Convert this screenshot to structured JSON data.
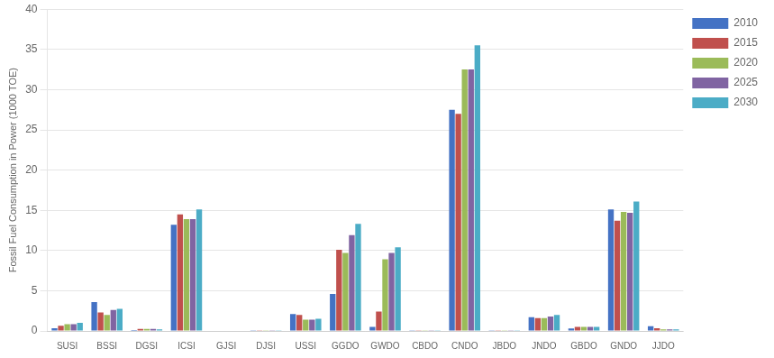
{
  "chart_data": {
    "type": "bar",
    "categories": [
      "SUSI",
      "BSSI",
      "DGSI",
      "ICSI",
      "GJSI",
      "DJSI",
      "USSI",
      "GGDO",
      "GWDO",
      "CBDO",
      "CNDO",
      "JBDO",
      "JNDO",
      "GBDO",
      "GNDO",
      "JJDO"
    ],
    "series": [
      {
        "name": "2010",
        "color": "#4472c4",
        "values": [
          0.35,
          3.6,
          0.1,
          13.2,
          0.05,
          0.08,
          2.1,
          4.6,
          0.5,
          0.08,
          27.5,
          0.08,
          1.7,
          0.3,
          15.1,
          0.6
        ]
      },
      {
        "name": "2015",
        "color": "#c0504d",
        "values": [
          0.65,
          2.3,
          0.25,
          14.5,
          0.05,
          0.08,
          2.0,
          10.1,
          2.4,
          0.08,
          27.0,
          0.08,
          1.6,
          0.5,
          13.7,
          0.35
        ]
      },
      {
        "name": "2020",
        "color": "#9bbb59",
        "values": [
          0.85,
          2.0,
          0.25,
          13.9,
          0.05,
          0.08,
          1.4,
          9.7,
          8.9,
          0.08,
          32.5,
          0.08,
          1.6,
          0.5,
          14.8,
          0.2
        ]
      },
      {
        "name": "2025",
        "color": "#8064a2",
        "values": [
          0.85,
          2.6,
          0.25,
          13.9,
          0.05,
          0.08,
          1.4,
          11.9,
          9.7,
          0.08,
          32.5,
          0.08,
          1.8,
          0.5,
          14.7,
          0.2
        ]
      },
      {
        "name": "2030",
        "color": "#4bacc6",
        "values": [
          1.0,
          2.75,
          0.2,
          15.1,
          0.05,
          0.08,
          1.5,
          13.3,
          10.4,
          0.08,
          35.5,
          0.08,
          2.0,
          0.5,
          16.1,
          0.2
        ]
      }
    ],
    "ylabel": "Fossil Fuel Consumption in Power (1000 TOE)",
    "ylim": [
      0,
      40
    ],
    "yticks": [
      0,
      5,
      10,
      15,
      20,
      25,
      30,
      35,
      40
    ],
    "grid": true,
    "legend": "right"
  }
}
